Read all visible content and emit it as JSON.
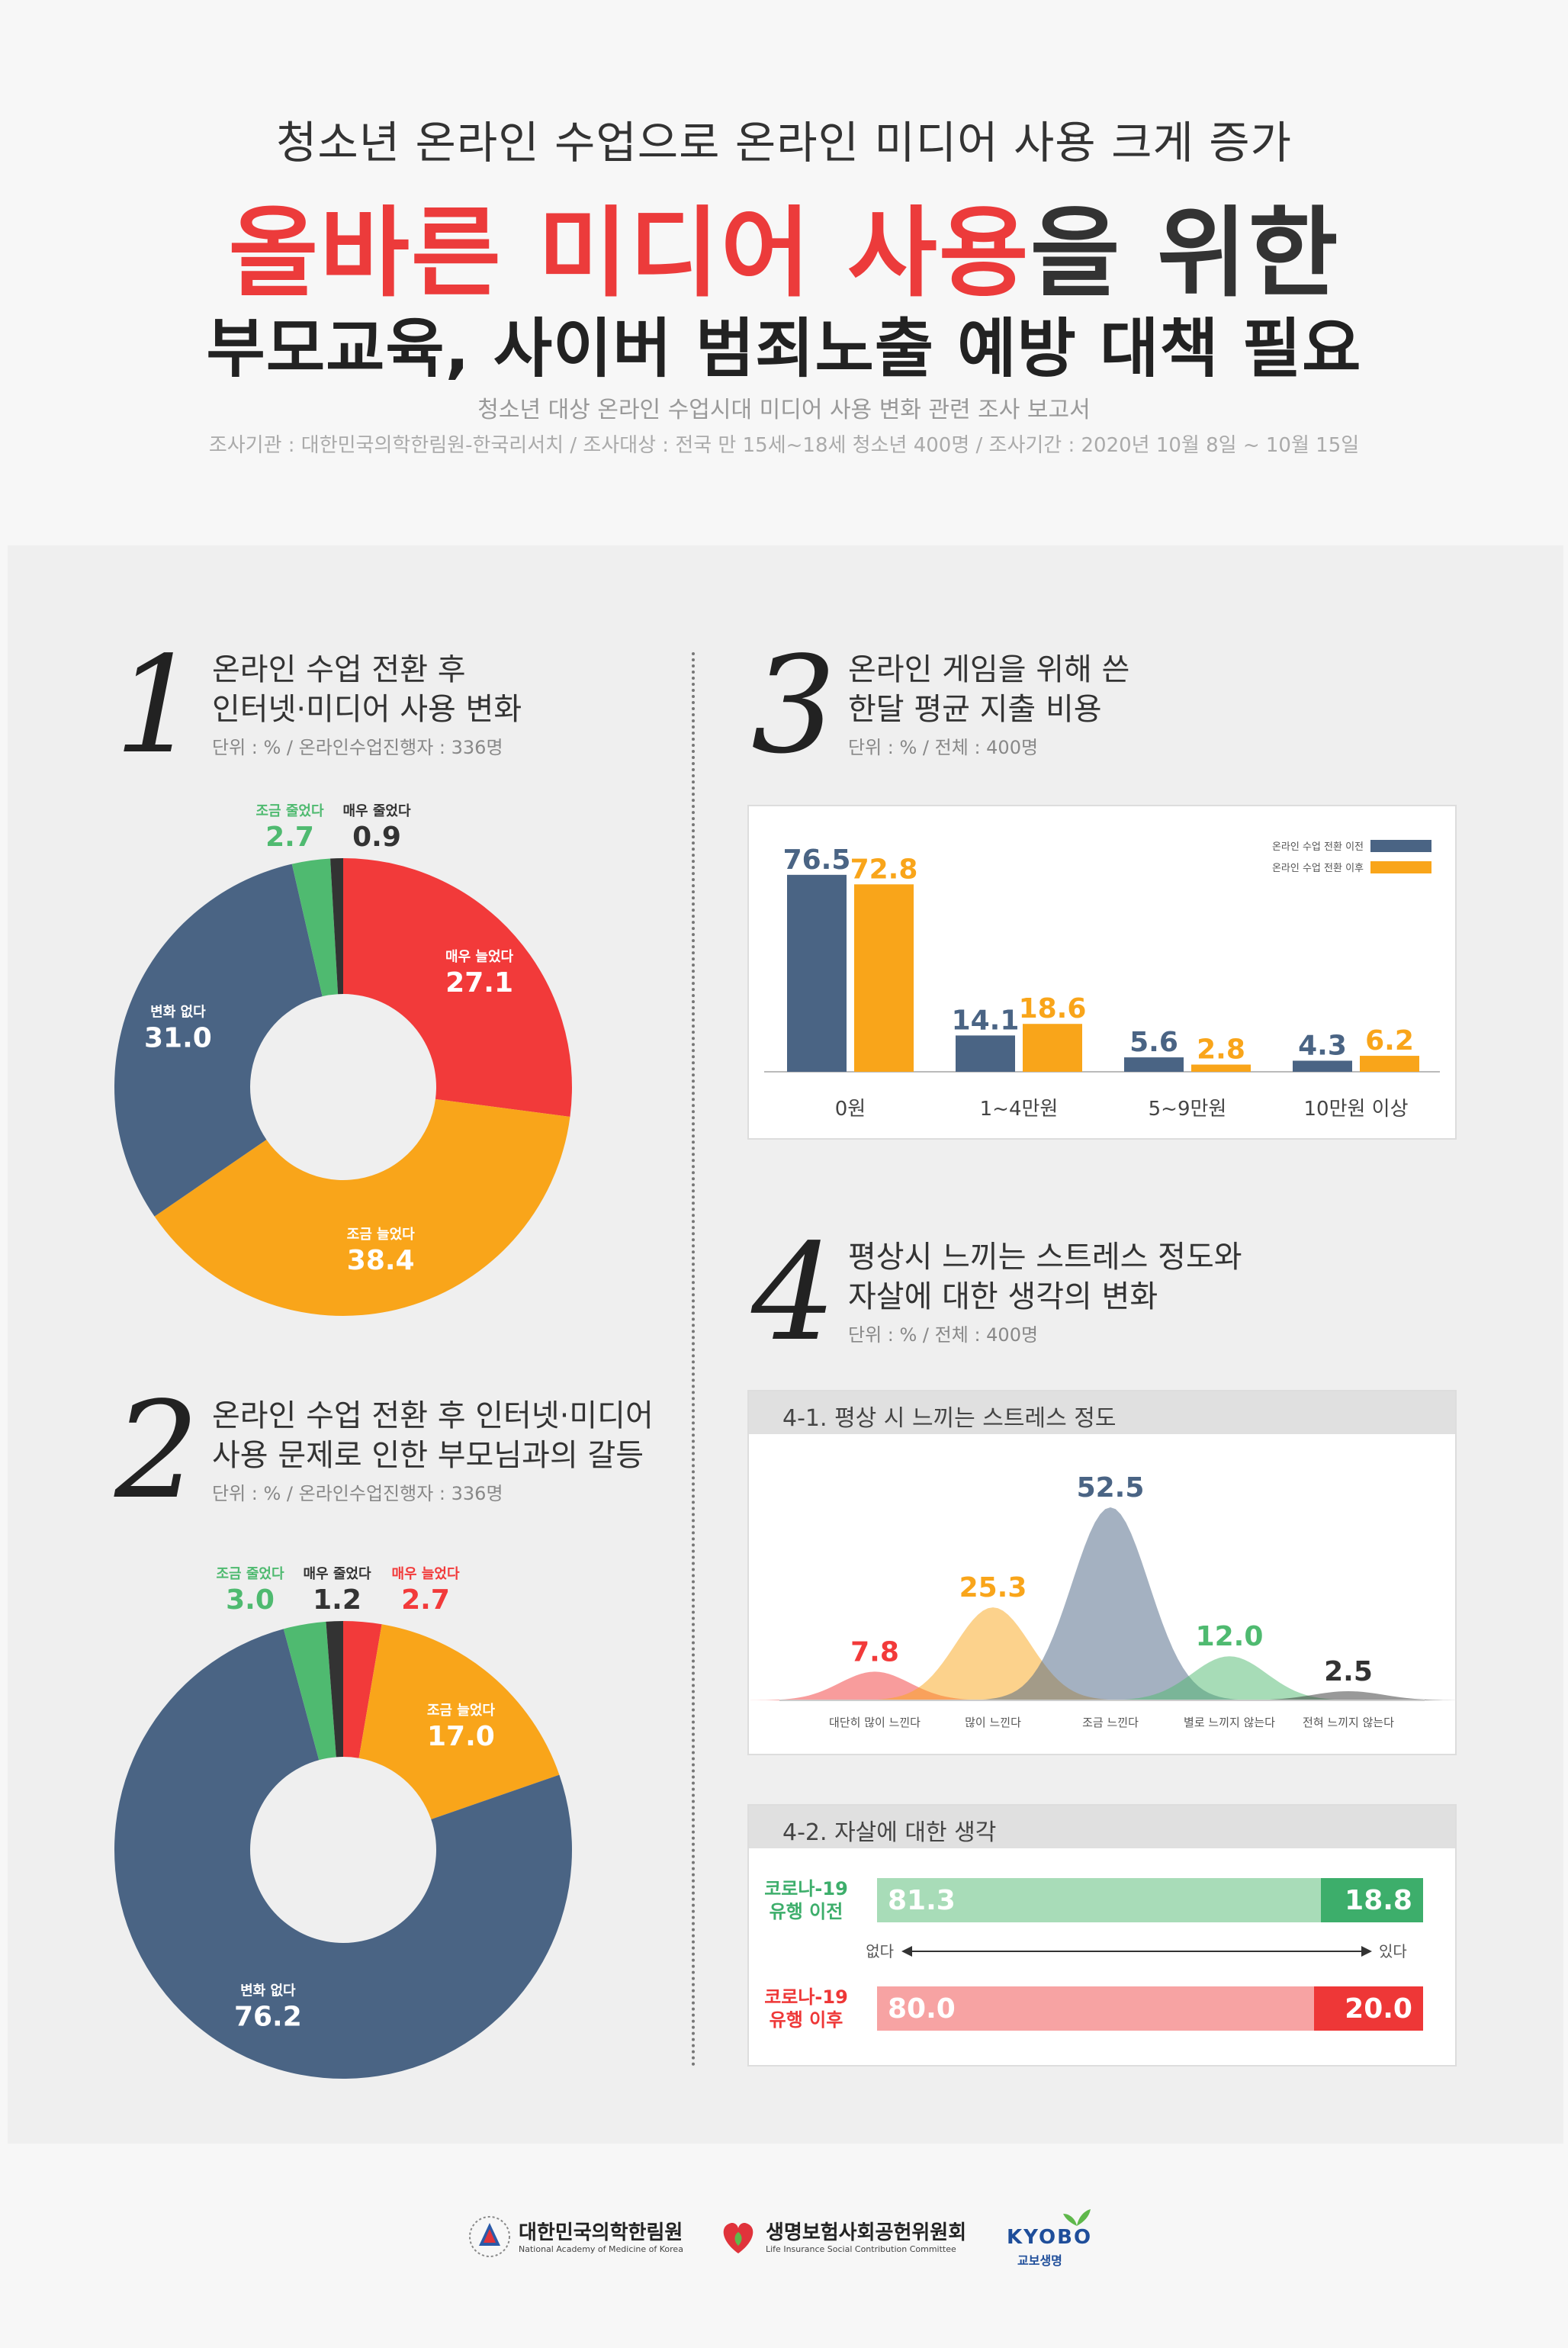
{
  "header": {
    "subtitle": "청소년 온라인 수업으로 온라인 미디어 사용 크게 증가",
    "title_red": "올바른 미디어 사용",
    "title_dark": "을 위한",
    "title2": "부모교육, 사이버 범죄노출 예방 대책 필요",
    "report": "청소년 대상 온라인 수업시대 미디어 사용 변화 관련 조사 보고서",
    "meta": "조사기관 : 대한민국의학한림원-한국리서치 / 조사대상 : 전국 만 15세~18세 청소년 400명 / 조사기간 : 2020년 10월 8일 ~ 10월 15일"
  },
  "sections": {
    "s1": {
      "num": "1",
      "title_line1": "온라인 수업 전환 후",
      "title_line2": "인터넷·미디어 사용 변화",
      "unit": "단위 : % / 온라인수업진행자 : 336명"
    },
    "s2": {
      "num": "2",
      "title_line1": "온라인 수업 전환 후 인터넷·미디어",
      "title_line2": "사용 문제로 인한 부모님과의 갈등",
      "unit": "단위 : % / 온라인수업진행자 : 336명"
    },
    "s3": {
      "num": "3",
      "title_line1": "온라인 게임을 위해 쓴",
      "title_line2": "한달 평균 지출 비용",
      "unit": "단위 : % / 전체 : 400명"
    },
    "s4": {
      "num": "4",
      "title_line1": "평상시 느끼는 스트레스 정도와",
      "title_line2": "자살에 대한 생각의 변화",
      "unit": "단위 : % / 전체 : 400명"
    }
  },
  "colors": {
    "red": "#f23a3a",
    "orange": "#f9a51a",
    "navy": "#4a6484",
    "green": "#4fba70",
    "dark": "#333333"
  },
  "chart_data": [
    {
      "type": "pie",
      "slices": [
        {
          "label": "매우 늘었다",
          "value": 27.1,
          "color": "#f23a3a"
        },
        {
          "label": "조금 늘었다",
          "value": 38.4,
          "color": "#f9a51a"
        },
        {
          "label": "변화 없다",
          "value": 31.0,
          "color": "#4a6484"
        },
        {
          "label": "조금 줄었다",
          "value": 2.7,
          "color": "#4fba70"
        },
        {
          "label": "매우 줄었다",
          "value": 0.9,
          "color": "#333333"
        }
      ]
    },
    {
      "type": "pie",
      "slices": [
        {
          "label": "매우 늘었다",
          "value": 2.7,
          "color": "#f23a3a"
        },
        {
          "label": "조금 늘었다",
          "value": 17.0,
          "color": "#f9a51a"
        },
        {
          "label": "변화 없다",
          "value": 76.2,
          "color": "#4a6484"
        },
        {
          "label": "조금 줄었다",
          "value": 3.0,
          "color": "#4fba70"
        },
        {
          "label": "매우 줄었다",
          "value": 1.2,
          "color": "#333333"
        }
      ]
    },
    {
      "type": "bar",
      "categories": [
        "0원",
        "1~4만원",
        "5~9만원",
        "10만원 이상"
      ],
      "series": [
        {
          "name": "온라인 수업 전환 이전",
          "values": [
            "76.5",
            "14.1",
            "5.6",
            "4.3"
          ],
          "color": "#4a6484"
        },
        {
          "name": "온라인 수업 전환 이후",
          "values": [
            "72.8",
            "18.6",
            "2.8",
            "6.2"
          ],
          "color": "#f9a51a"
        }
      ]
    },
    {
      "type": "area",
      "title": "4-1. 평상 시 느끼는 스트레스 정도",
      "categories": [
        "대단히 많이 느낀다",
        "많이 느낀다",
        "조금 느낀다",
        "별로 느끼지 않는다",
        "전혀 느끼지 않는다"
      ],
      "values": [
        "7.8",
        "25.3",
        "52.5",
        "12.0",
        "2.5"
      ],
      "colors": [
        "#f23a3a",
        "#f9a51a",
        "#4a6484",
        "#4fba70",
        "#333333"
      ]
    },
    {
      "type": "bar",
      "title": "4-2. 자살에 대한 생각",
      "rows": [
        {
          "label_line1": "코로나-19",
          "label_line2": "유행 이전",
          "none": "81.3",
          "has": "18.8",
          "light": "#a8dcb8",
          "dark": "#3dae6b",
          "text": "#3dae6b"
        },
        {
          "label_line1": "코로나-19",
          "label_line2": "유행 이후",
          "none": "80.0",
          "has": "20.0",
          "light": "#f7a3a3",
          "dark": "#ee3737",
          "text": "#ee3737"
        }
      ],
      "axis_left": "없다",
      "axis_right": "있다"
    }
  ],
  "footer": {
    "logo1_name": "대한민국의학한림원",
    "logo1_sub": "National Academy of Medicine of Korea",
    "logo2_name": "생명보험사회공헌위원회",
    "logo2_sub": "Life Insurance Social Contribution Committee",
    "logo3_name": "KYOBO",
    "logo3_sub": "교보생명"
  }
}
